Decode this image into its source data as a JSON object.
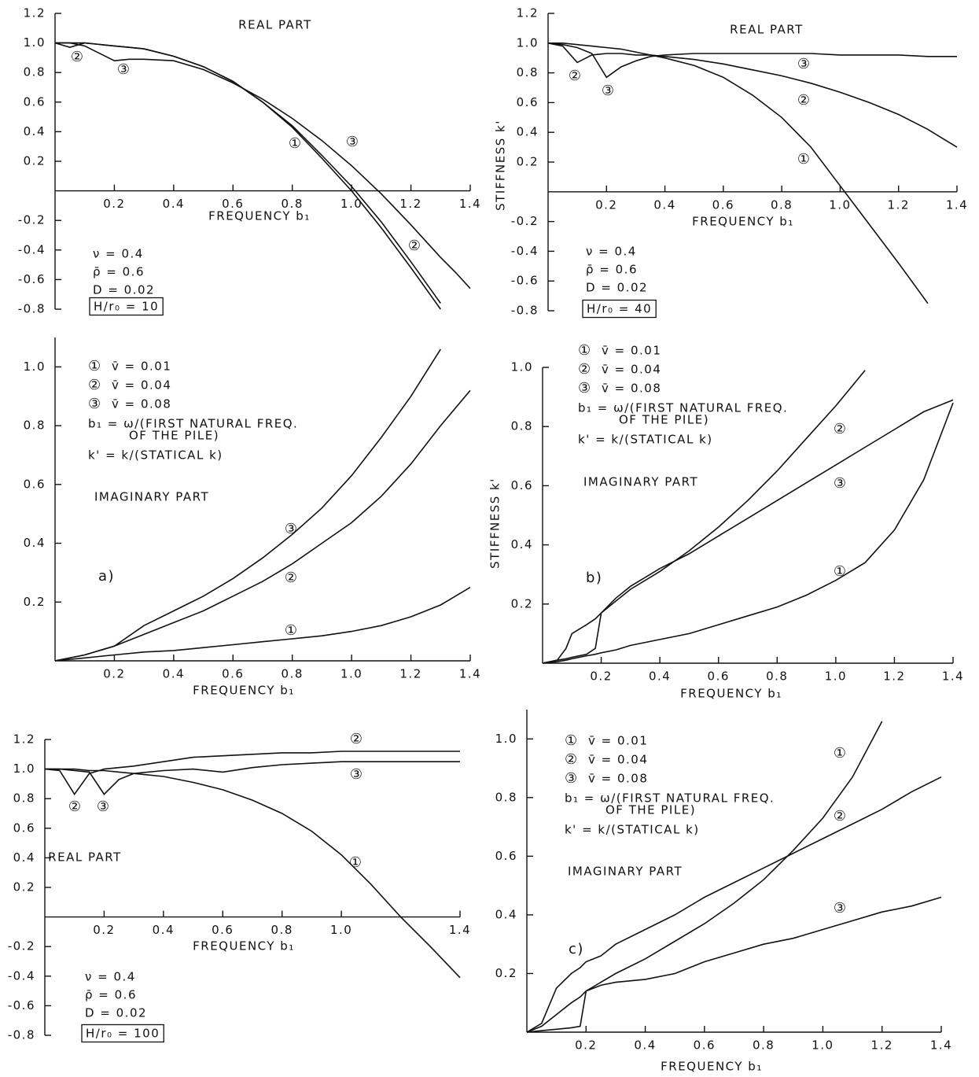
{
  "chart_data": [
    {
      "type": "line",
      "title": "REAL PART",
      "x_label": "FREQUENCY b₁",
      "parameters": [
        "ν = 0.4",
        "ρ̄ = 0.6",
        "D = 0.02"
      ],
      "boxed": "H/r₀ = 10",
      "xlim": [
        0,
        1.4
      ],
      "ylim": [
        -0.8,
        1.2
      ],
      "xticks": [
        0.2,
        0.4,
        0.6,
        0.8,
        {
          "value": 1,
          "label": "1.0"
        },
        1.2,
        1.4
      ],
      "yticks": [
        1.2,
        {
          "value": 1,
          "label": "1.0"
        },
        0.8,
        0.6,
        0.4,
        0.2,
        -0.2,
        -0.4,
        -0.6,
        -0.8
      ],
      "x": [
        0,
        0.05,
        0.1,
        0.15,
        0.2,
        0.25,
        0.3,
        0.4,
        0.5,
        0.6,
        0.7,
        0.8,
        0.9,
        1.0,
        1.1,
        1.2,
        1.3,
        1.35,
        1.4
      ],
      "series": [
        {
          "name": "①",
          "color": "#111111",
          "values": [
            1.0,
            1.0,
            1.0,
            0.99,
            0.98,
            0.97,
            0.96,
            0.91,
            0.84,
            0.74,
            0.6,
            0.43,
            0.22,
            0.0,
            -0.25,
            -0.52,
            -0.8,
            null,
            null
          ]
        },
        {
          "name": "②",
          "color": "#111111",
          "values": [
            1.0,
            0.97,
            1.0,
            0.99,
            0.98,
            0.97,
            0.96,
            0.91,
            0.84,
            0.74,
            0.6,
            0.44,
            0.24,
            0.03,
            -0.21,
            -0.48,
            -0.76,
            null,
            null
          ]
        },
        {
          "name": "③",
          "color": "#111111",
          "values": [
            1.0,
            1.0,
            0.98,
            0.93,
            0.88,
            0.89,
            0.89,
            0.88,
            0.82,
            0.73,
            0.62,
            0.49,
            0.34,
            0.17,
            -0.02,
            -0.23,
            -0.45,
            -0.55,
            -0.66
          ]
        }
      ]
    },
    {
      "type": "line",
      "title": "REAL PART",
      "x_label": "FREQUENCY b₁",
      "y_label": "STIFFNESS k'",
      "parameters": [
        "ν = 0.4",
        "ρ̄ = 0.6",
        "D = 0.02"
      ],
      "boxed": "H/r₀ = 40",
      "xlim": [
        0,
        1.4
      ],
      "ylim": [
        -0.8,
        1.2
      ],
      "xticks": [
        0.2,
        0.4,
        0.6,
        0.8,
        {
          "value": 1,
          "label": "1.0"
        },
        1.2,
        1.4
      ],
      "yticks": [
        1.2,
        {
          "value": 1,
          "label": "1.0"
        },
        0.8,
        0.6,
        0.4,
        0.2,
        -0.2,
        -0.4,
        -0.6,
        -0.8
      ],
      "x": [
        0,
        0.05,
        0.1,
        0.15,
        0.2,
        0.25,
        0.3,
        0.35,
        0.4,
        0.5,
        0.6,
        0.7,
        0.8,
        0.9,
        1.0,
        1.1,
        1.2,
        1.3,
        1.35,
        1.4
      ],
      "series": [
        {
          "name": "①",
          "color": "#111111",
          "values": [
            1.0,
            1.0,
            0.99,
            0.98,
            0.97,
            0.96,
            0.94,
            0.92,
            0.9,
            0.85,
            0.77,
            0.65,
            0.5,
            0.3,
            0.04,
            -0.22,
            -0.48,
            -0.75,
            null,
            null
          ]
        },
        {
          "name": "②",
          "color": "#111111",
          "values": [
            1.0,
            0.98,
            0.87,
            0.92,
            0.93,
            0.93,
            0.92,
            0.92,
            0.91,
            0.89,
            0.86,
            0.82,
            0.78,
            0.73,
            0.67,
            0.6,
            0.52,
            0.42,
            0.36,
            0.3
          ]
        },
        {
          "name": "③",
          "color": "#111111",
          "values": [
            1.0,
            0.99,
            0.97,
            0.93,
            0.77,
            0.84,
            0.88,
            0.91,
            0.92,
            0.93,
            0.93,
            0.93,
            0.93,
            0.93,
            0.92,
            0.92,
            0.92,
            0.91,
            0.91,
            0.91
          ]
        }
      ]
    },
    {
      "type": "line",
      "title": "IMAGINARY PART",
      "x_label": "FREQUENCY b₁",
      "panel_label": "a)",
      "legend_notes": [
        "v̄ = 0.01",
        "v̄ = 0.04",
        "v̄ = 0.08"
      ],
      "definitions": [
        "b₁ = ω/(FIRST NATURAL FREQ.",
        "OF THE PILE)",
        "k' = k/(STATICAL k)"
      ],
      "xlim": [
        0,
        1.4
      ],
      "ylim": [
        0,
        1.1
      ],
      "xticks": [
        0.2,
        0.4,
        0.6,
        0.8,
        {
          "value": 1,
          "label": "1.0"
        },
        1.2,
        1.4
      ],
      "yticks": [
        {
          "value": 1,
          "label": "1.0"
        },
        0.8,
        0.6,
        0.4,
        0.2
      ],
      "x": [
        0,
        0.1,
        0.2,
        0.3,
        0.4,
        0.5,
        0.6,
        0.7,
        0.8,
        0.9,
        1.0,
        1.1,
        1.2,
        1.3,
        1.4
      ],
      "series": [
        {
          "name": "①",
          "color": "#111111",
          "values": [
            0,
            0.01,
            0.02,
            0.03,
            0.035,
            0.045,
            0.055,
            0.065,
            0.075,
            0.085,
            0.1,
            0.12,
            0.15,
            0.19,
            0.25
          ]
        },
        {
          "name": "②",
          "color": "#111111",
          "values": [
            0,
            0.02,
            0.05,
            0.09,
            0.13,
            0.17,
            0.22,
            0.27,
            0.33,
            0.4,
            0.47,
            0.56,
            0.67,
            0.8,
            0.92
          ]
        },
        {
          "name": "③",
          "color": "#111111",
          "values": [
            0,
            0.02,
            0.05,
            0.12,
            0.17,
            0.22,
            0.28,
            0.35,
            0.43,
            0.52,
            0.63,
            0.76,
            0.9,
            1.06,
            null
          ]
        }
      ]
    },
    {
      "type": "line",
      "title": "IMAGINARY PART",
      "x_label": "FREQUENCY b₁",
      "y_label": "STIFFNESS k'",
      "panel_label": "b)",
      "legend_notes": [
        "v̄ = 0.01",
        "v̄ = 0.04",
        "v̄ = 0.08"
      ],
      "definitions": [
        "b₁ = ω/(FIRST NATURAL FREQ.",
        "OF THE PILE)",
        "k' = k/(STATICAL k)"
      ],
      "xlim": [
        0,
        1.4
      ],
      "ylim": [
        0,
        1.0
      ],
      "xticks": [
        0.2,
        0.4,
        0.6,
        0.8,
        {
          "value": 1,
          "label": "1.0"
        },
        1.2,
        1.4
      ],
      "yticks": [
        {
          "value": 1,
          "label": "1.0"
        },
        0.8,
        0.6,
        0.4,
        0.2
      ],
      "x": [
        0,
        0.05,
        0.08,
        0.1,
        0.15,
        0.18,
        0.2,
        0.25,
        0.3,
        0.4,
        0.5,
        0.6,
        0.7,
        0.8,
        0.9,
        1.0,
        1.1,
        1.2,
        1.3,
        1.4
      ],
      "series": [
        {
          "name": "①",
          "color": "#111111",
          "values": [
            0,
            0.005,
            0.01,
            0.015,
            0.025,
            0.03,
            0.035,
            0.045,
            0.06,
            0.08,
            0.1,
            0.13,
            0.16,
            0.19,
            0.23,
            0.28,
            0.34,
            0.45,
            0.62,
            0.88
          ]
        },
        {
          "name": "②",
          "color": "#111111",
          "values": [
            0,
            0.01,
            0.05,
            0.1,
            0.13,
            0.15,
            0.17,
            0.21,
            0.25,
            0.31,
            0.38,
            0.46,
            0.55,
            0.65,
            0.76,
            0.87,
            0.99,
            null,
            null,
            null
          ]
        },
        {
          "name": "③",
          "color": "#111111",
          "values": [
            0,
            0.01,
            0.015,
            0.02,
            0.03,
            0.05,
            0.17,
            0.22,
            0.26,
            0.32,
            0.37,
            0.43,
            0.49,
            0.55,
            0.61,
            0.67,
            0.73,
            0.79,
            0.85,
            0.89
          ]
        }
      ]
    },
    {
      "type": "line",
      "title": "REAL PART",
      "x_label": "FREQUENCY b₁",
      "parameters": [
        "ν = 0.4",
        "ρ̄ = 0.6",
        "D = 0.02"
      ],
      "boxed": "H/r₀ = 100",
      "xlim": [
        0,
        1.4
      ],
      "ylim": [
        -0.8,
        1.2
      ],
      "xticks": [
        0.2,
        0.4,
        0.6,
        0.8,
        {
          "value": 1,
          "label": "1.0"
        },
        1.4
      ],
      "yticks": [
        1.2,
        {
          "value": 1,
          "label": "1.0"
        },
        0.8,
        0.6,
        0.4,
        0.2,
        -0.2,
        -0.4,
        -0.6,
        -0.8
      ],
      "x": [
        0,
        0.05,
        0.1,
        0.15,
        0.2,
        0.25,
        0.3,
        0.4,
        0.5,
        0.6,
        0.7,
        0.8,
        0.9,
        1.0,
        1.1,
        1.2,
        1.3,
        1.4
      ],
      "series": [
        {
          "name": "①",
          "color": "#111111",
          "values": [
            1.0,
            1.0,
            1.0,
            0.99,
            0.99,
            0.98,
            0.97,
            0.95,
            0.91,
            0.86,
            0.79,
            0.7,
            0.58,
            0.42,
            0.22,
            0.0,
            -0.2,
            -0.41
          ]
        },
        {
          "name": "②",
          "color": "#111111",
          "values": [
            1.0,
            0.99,
            0.83,
            0.97,
            1.0,
            1.01,
            1.02,
            1.05,
            1.08,
            1.09,
            1.1,
            1.11,
            1.11,
            1.12,
            1.12,
            1.12,
            1.12,
            1.12
          ]
        },
        {
          "name": "③",
          "color": "#111111",
          "values": [
            1.0,
            1.0,
            0.99,
            0.98,
            0.83,
            0.93,
            0.97,
            0.99,
            1.0,
            0.98,
            1.01,
            1.03,
            1.04,
            1.05,
            1.05,
            1.05,
            1.05,
            1.05
          ]
        }
      ]
    },
    {
      "type": "line",
      "title": "IMAGINARY PART",
      "x_label": "FREQUENCY b₁",
      "panel_label": "c)",
      "legend_notes": [
        "v̄ = 0.01",
        "v̄ = 0.04",
        "v̄ = 0.08"
      ],
      "definitions": [
        "b₁ = ω/(FIRST NATURAL FREQ.",
        "OF THE PILE)",
        "k' = k/(STATICAL k)"
      ],
      "xlim": [
        0,
        1.4
      ],
      "ylim": [
        0,
        1.1
      ],
      "xticks": [
        0.2,
        0.4,
        0.6,
        0.8,
        {
          "value": 1,
          "label": "1.0"
        },
        1.2,
        1.4
      ],
      "yticks": [
        {
          "value": 1,
          "label": "1.0"
        },
        0.8,
        0.6,
        0.4,
        0.2
      ],
      "x": [
        0,
        0.05,
        0.1,
        0.15,
        0.18,
        0.2,
        0.25,
        0.3,
        0.4,
        0.5,
        0.6,
        0.7,
        0.8,
        0.9,
        1.0,
        1.1,
        1.2,
        1.3,
        1.4
      ],
      "series": [
        {
          "name": "①",
          "color": "#111111",
          "values": [
            0,
            0.02,
            0.06,
            0.1,
            0.12,
            0.14,
            0.17,
            0.2,
            0.25,
            0.31,
            0.37,
            0.44,
            0.52,
            0.62,
            0.73,
            0.87,
            1.06,
            null,
            null
          ]
        },
        {
          "name": "②",
          "color": "#111111",
          "values": [
            0,
            0.03,
            0.15,
            0.2,
            0.22,
            0.24,
            0.26,
            0.3,
            0.35,
            0.4,
            0.46,
            0.51,
            0.56,
            0.61,
            0.66,
            0.71,
            0.76,
            0.82,
            0.87
          ]
        },
        {
          "name": "③",
          "color": "#111111",
          "values": [
            0,
            0.005,
            0.01,
            0.015,
            0.02,
            0.14,
            0.16,
            0.17,
            0.18,
            0.2,
            0.24,
            0.27,
            0.3,
            0.32,
            0.35,
            0.38,
            0.41,
            0.43,
            0.46
          ]
        }
      ]
    }
  ]
}
